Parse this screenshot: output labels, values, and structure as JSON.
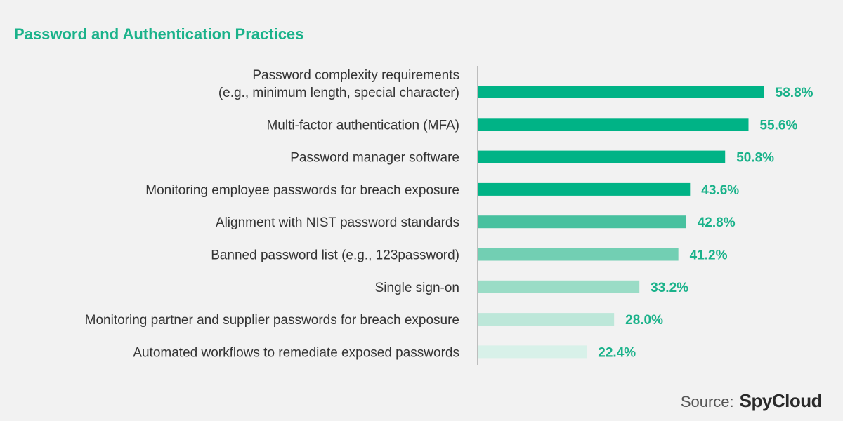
{
  "chart_data": {
    "type": "bar",
    "orientation": "horizontal",
    "title": "Password and Authentication Practices",
    "categories": [
      [
        "Password complexity requirements",
        "(e.g., minimum length, special character)"
      ],
      [
        "Multi-factor authentication (MFA)"
      ],
      [
        "Password manager software"
      ],
      [
        "Monitoring employee passwords for breach exposure"
      ],
      [
        "Alignment with NIST password standards"
      ],
      [
        "Banned password list (e.g., 123password)"
      ],
      [
        "Single sign-on"
      ],
      [
        "Monitoring partner and supplier passwords for breach exposure"
      ],
      [
        "Automated workflows to remediate exposed passwords"
      ]
    ],
    "values": [
      58.8,
      55.6,
      50.8,
      43.6,
      42.8,
      41.2,
      33.2,
      28.0,
      22.4
    ],
    "value_labels": [
      "58.8%",
      "55.6%",
      "50.8%",
      "43.6%",
      "42.8%",
      "41.2%",
      "33.2%",
      "28.0%",
      "22.4%"
    ],
    "bar_colors": [
      "#00b386",
      "#00b386",
      "#00b386",
      "#00b386",
      "#48c19f",
      "#72cfb3",
      "#9adcc6",
      "#bde7d9",
      "#d8f1e9"
    ],
    "xlim": [
      0,
      60
    ],
    "grid": false
  },
  "footer": {
    "source_label": "Source:",
    "brand": "SpyCloud"
  }
}
